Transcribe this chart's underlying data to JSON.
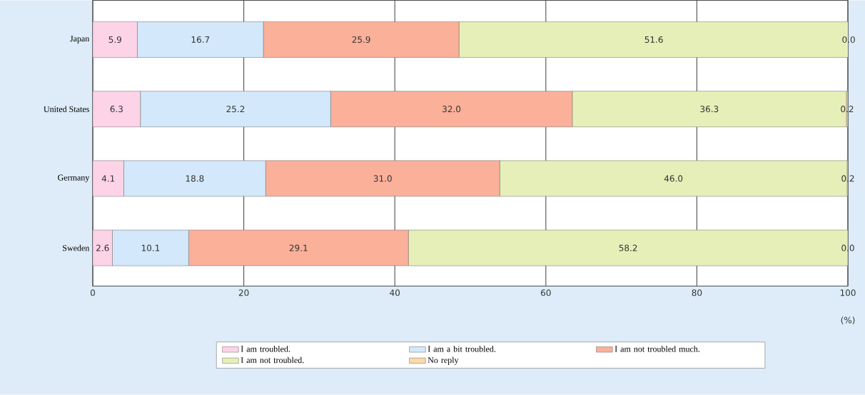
{
  "chart_data": {
    "type": "bar",
    "orientation": "horizontal",
    "stacked": true,
    "xlabel": "(%)",
    "categories": [
      "Japan",
      "United States",
      "Germany",
      "Sweden"
    ],
    "series": [
      {
        "name": "I am troubled.",
        "color": "#fdd3e8",
        "values": [
          5.9,
          6.3,
          4.1,
          2.6
        ],
        "value_labels": [
          "5.9",
          "6.3",
          "4.1",
          "2.6"
        ]
      },
      {
        "name": "I am a bit troubled.",
        "color": "#d3e8fa",
        "values": [
          16.7,
          25.2,
          18.8,
          10.1
        ],
        "value_labels": [
          "16.7",
          "25.2",
          "18.8",
          "10.1"
        ]
      },
      {
        "name": "I am not troubled much.",
        "color": "#fbb099",
        "values": [
          25.9,
          32.0,
          31.0,
          29.1
        ],
        "value_labels": [
          "25.9",
          "32.0",
          "31.0",
          "29.1"
        ]
      },
      {
        "name": "I am not troubled.",
        "color": "#e6efb8",
        "values": [
          51.6,
          36.3,
          46.0,
          58.2
        ],
        "value_labels": [
          "51.6",
          "36.3",
          "46.0",
          "58.2"
        ]
      },
      {
        "name": "No reply",
        "color": "#fdd8a8",
        "values": [
          0.0,
          0.2,
          0.2,
          0.0
        ],
        "value_labels": [
          "0.0",
          "0.2",
          "0.2",
          "0.0"
        ]
      }
    ],
    "xlim": [
      0,
      100
    ],
    "xticks": [
      0,
      20,
      40,
      60,
      80,
      100
    ],
    "grid": "x",
    "legend": "bottom"
  }
}
